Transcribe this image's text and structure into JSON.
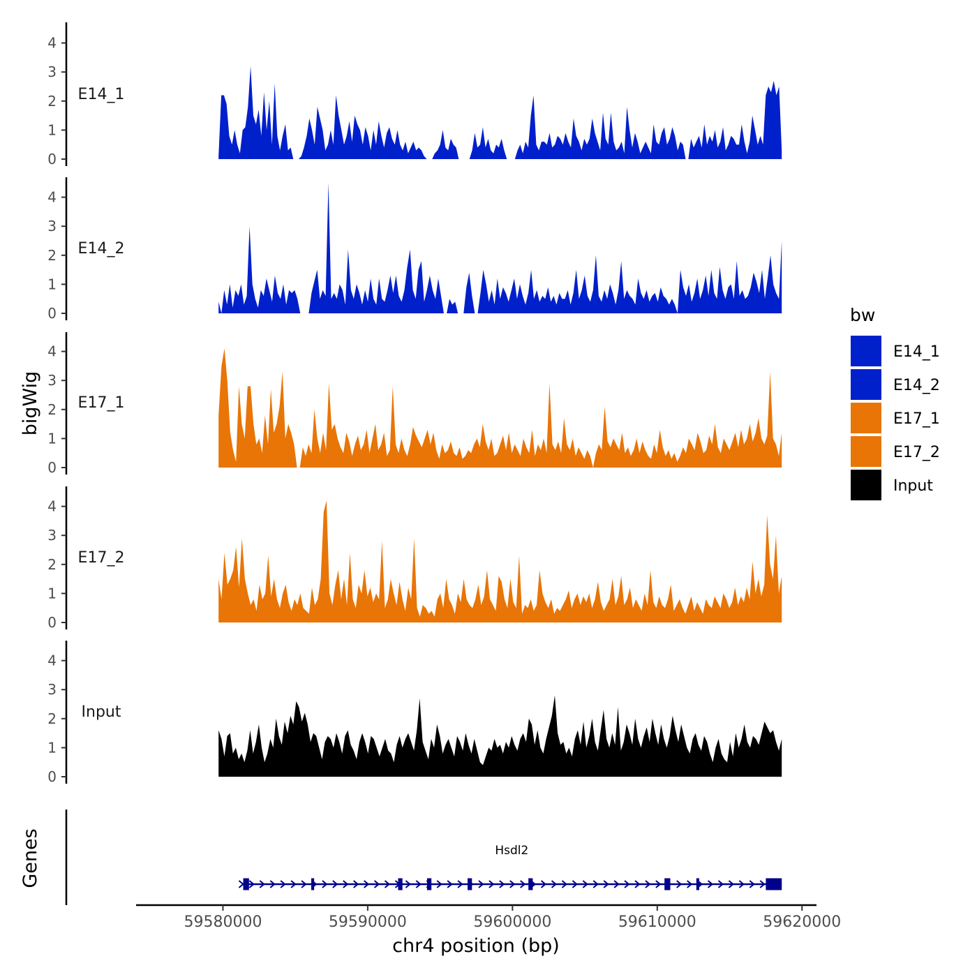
{
  "chart_data": {
    "type": "area",
    "chromosome": "chr4",
    "xlabel": "chr4 position (bp)",
    "ylabel": "bigWig",
    "genes_label": "Genes",
    "xlim": [
      59574000,
      59621000
    ],
    "xticks": [
      59580000,
      59590000,
      59600000,
      59610000,
      59620000
    ],
    "xtick_labels": [
      "59580000",
      "59590000",
      "59600000",
      "59610000",
      "59620000"
    ],
    "ylim": [
      0,
      4.7
    ],
    "yticks": [
      0,
      1,
      2,
      3,
      4
    ],
    "ytick_labels": [
      "0",
      "1",
      "2",
      "3",
      "4"
    ],
    "legend": {
      "title": "bw",
      "entries": [
        {
          "label": "E14_1",
          "color": "#0020cc"
        },
        {
          "label": "E14_2",
          "color": "#0020cc"
        },
        {
          "label": "E17_1",
          "color": "#e87506"
        },
        {
          "label": "E17_2",
          "color": "#e87506"
        },
        {
          "label": "Input",
          "color": "#000000"
        }
      ]
    },
    "track_range": [
      59579700,
      59618600
    ],
    "tracks": [
      {
        "name": "E14_1",
        "color": "#0020cc",
        "values": [
          0.1,
          2.2,
          2.2,
          1.9,
          0.8,
          0.5,
          1.0,
          0.5,
          0.2,
          1.0,
          1.1,
          1.8,
          3.2,
          1.5,
          1.2,
          1.7,
          0.8,
          2.3,
          1.0,
          2.0,
          0.5,
          2.6,
          0.8,
          0.3,
          0.8,
          1.2,
          0.3,
          0.4,
          0,
          0,
          0,
          0.1,
          0.4,
          0.8,
          1.4,
          1.0,
          0.5,
          1.8,
          1.4,
          1.0,
          0.3,
          0.5,
          1.0,
          0.5,
          2.2,
          1.5,
          1.0,
          0.5,
          0.8,
          1.3,
          0.6,
          1.5,
          1.2,
          1.0,
          0.5,
          1.1,
          0.8,
          0.3,
          1.0,
          0.5,
          1.3,
          0.8,
          0.4,
          0.9,
          1.1,
          0.7,
          0.5,
          1.0,
          0.5,
          0.3,
          0.6,
          0.2,
          0.4,
          0.6,
          0.3,
          0.4,
          0.3,
          0.1,
          0,
          0,
          0,
          0.2,
          0.3,
          0.5,
          1.0,
          0.4,
          0.3,
          0.7,
          0.5,
          0.4,
          0,
          0,
          0,
          0,
          0,
          0.3,
          0.9,
          0.4,
          0.5,
          1.1,
          0.4,
          0.7,
          0.3,
          0.2,
          0.5,
          0.4,
          0.7,
          0.3,
          0,
          0,
          0,
          0,
          0.3,
          0.5,
          0.2,
          0.6,
          0.4,
          1.5,
          2.2,
          0.5,
          0.3,
          0.6,
          0.6,
          0.5,
          0.9,
          0.4,
          0.5,
          0.8,
          0.7,
          0.5,
          0.9,
          0.6,
          0.4,
          1.4,
          0.8,
          0.6,
          0.3,
          0.7,
          0.5,
          0.7,
          1.4,
          0.9,
          0.6,
          0.3,
          1.6,
          0.7,
          0.5,
          1.6,
          0.6,
          0.3,
          0.4,
          0.6,
          0.2,
          1.8,
          1.0,
          0.4,
          0.9,
          0.6,
          0.2,
          0.4,
          0.6,
          0.4,
          0.2,
          1.2,
          0.6,
          0.5,
          0.9,
          1.1,
          0.5,
          0.7,
          1.1,
          0.8,
          0.3,
          0.6,
          0.5,
          0,
          0,
          0.7,
          0.4,
          0.6,
          0.8,
          0.4,
          1.2,
          0.5,
          0.8,
          0.6,
          1.0,
          0.4,
          0.6,
          1.1,
          0.3,
          0.5,
          0.8,
          0.7,
          0.5,
          0.5,
          1.2,
          0.6,
          0.2,
          0.6,
          1.5,
          1.0,
          0.5,
          0.8,
          0.5,
          2.2,
          2.5,
          2.3,
          2.7,
          2.2,
          2.5,
          0.3
        ]
      },
      {
        "name": "E14_2",
        "color": "#0020cc",
        "values": [
          0.4,
          0,
          0.8,
          0.3,
          1.0,
          0.2,
          0.8,
          0.6,
          1.0,
          0.3,
          0.6,
          3.0,
          1.0,
          0.5,
          0.2,
          0.8,
          0.6,
          1.2,
          0.8,
          0.4,
          1.3,
          0.7,
          0.5,
          1.0,
          0.3,
          0.8,
          0.7,
          0.8,
          0.5,
          0,
          0,
          0,
          0,
          0.7,
          1.1,
          1.5,
          0.5,
          0.8,
          0.6,
          4.5,
          0.5,
          0.7,
          0.5,
          1.0,
          0.8,
          0.3,
          2.2,
          0.8,
          0.5,
          1.0,
          0.7,
          0.3,
          0.8,
          0.4,
          1.2,
          0.5,
          0.3,
          1.2,
          0.5,
          0.4,
          0.8,
          1.3,
          0.7,
          1.3,
          0.6,
          0.4,
          0.8,
          1.6,
          2.2,
          0.8,
          0.5,
          1.5,
          1.8,
          0.4,
          0.8,
          1.3,
          0.8,
          0.5,
          1.2,
          0.6,
          0,
          0,
          0.5,
          0.3,
          0.4,
          0,
          0,
          0,
          0.9,
          1.4,
          0.6,
          0,
          0,
          0.7,
          1.5,
          1.0,
          0.4,
          0.8,
          0.3,
          1.2,
          0.5,
          0.9,
          0.7,
          0.4,
          0.8,
          1.2,
          0.5,
          1.0,
          0.6,
          0.3,
          0.7,
          1.5,
          0.5,
          0.8,
          0.4,
          0.6,
          0.5,
          0.9,
          0.4,
          0.6,
          0.3,
          0.7,
          0.5,
          0.5,
          0.8,
          0.3,
          0.7,
          1.5,
          0.5,
          0.8,
          1.3,
          0.6,
          0.4,
          0.8,
          2.0,
          0.6,
          0.4,
          0.8,
          0.5,
          1.0,
          0.7,
          0.3,
          0.8,
          1.8,
          0.5,
          0.8,
          0.6,
          0.5,
          0.3,
          1.2,
          0.7,
          0.5,
          0.8,
          0.4,
          0.6,
          0.7,
          0.4,
          0.9,
          0.6,
          0.5,
          0.3,
          0.5,
          0.3,
          0,
          1.5,
          0.9,
          0.6,
          1.0,
          0.4,
          0.7,
          1.2,
          0.5,
          0.8,
          1.3,
          0.6,
          1.5,
          0.7,
          0.5,
          1.6,
          0.8,
          0.5,
          0.9,
          1.0,
          0.5,
          1.8,
          0.6,
          0.8,
          0.5,
          0.6,
          0.9,
          1.4,
          1.1,
          0.7,
          1.5,
          0.5,
          1.2,
          2.0,
          1.0,
          0.7,
          0.5,
          2.5
        ]
      },
      {
        "name": "E17_1",
        "color": "#e87506",
        "values": [
          1.8,
          3.5,
          4.1,
          3.0,
          1.2,
          0.6,
          0.2,
          2.8,
          1.5,
          1.0,
          2.8,
          2.8,
          1.5,
          0.8,
          1.0,
          0.5,
          1.8,
          0.8,
          2.7,
          1.2,
          1.5,
          2.1,
          3.3,
          1.0,
          1.5,
          1.2,
          0.8,
          0,
          0,
          0.7,
          0.4,
          0.8,
          0.5,
          2.0,
          1.0,
          0.5,
          1.2,
          0.6,
          2.9,
          1.3,
          1.5,
          1.0,
          0.7,
          0.5,
          1.2,
          0.9,
          0.4,
          0.8,
          1.1,
          0.6,
          0.8,
          1.3,
          0.5,
          1.0,
          1.5,
          0.6,
          0.8,
          1.2,
          0.4,
          0.6,
          2.8,
          0.8,
          0.5,
          1.0,
          0.6,
          0.4,
          0.8,
          1.4,
          1.1,
          0.9,
          0.7,
          1.0,
          1.3,
          0.8,
          1.2,
          0.6,
          0.3,
          0.8,
          0.5,
          0.6,
          0.9,
          0.5,
          0.4,
          0.7,
          0.3,
          0.4,
          0.6,
          0.5,
          0.8,
          1.0,
          0.7,
          1.5,
          0.9,
          0.6,
          1.0,
          0.4,
          0.5,
          0.8,
          1.1,
          0.6,
          1.2,
          0.5,
          0.8,
          0.6,
          0.4,
          1.0,
          0.7,
          0.5,
          1.3,
          0.4,
          0.8,
          0.6,
          1.0,
          0.5,
          2.9,
          0.8,
          0.6,
          0.9,
          0.5,
          1.7,
          0.8,
          0.6,
          1.0,
          0.4,
          0.7,
          0.5,
          0.3,
          0.6,
          0.4,
          0,
          0.5,
          0.8,
          0.6,
          2.1,
          0.9,
          0.7,
          1.0,
          0.8,
          0.6,
          1.2,
          0.5,
          0.7,
          0.4,
          0.6,
          1.0,
          0.5,
          0.9,
          0.6,
          0.4,
          0.3,
          0.8,
          0.5,
          1.3,
          0.7,
          0.4,
          0.6,
          0.3,
          0.5,
          0.2,
          0.4,
          0.7,
          0.5,
          1.0,
          0.8,
          0.6,
          1.2,
          0.9,
          0.5,
          0.6,
          1.1,
          0.8,
          1.5,
          0.7,
          0.5,
          1.0,
          0.8,
          0.6,
          0.9,
          1.2,
          0.7,
          1.3,
          0.8,
          1.0,
          1.5,
          0.9,
          1.2,
          1.7,
          1.0,
          0.8,
          1.1,
          3.3,
          1.0,
          0.8,
          0.4,
          1.2
        ]
      },
      {
        "name": "E17_2",
        "color": "#e87506",
        "values": [
          1.5,
          0.8,
          2.4,
          1.3,
          1.5,
          1.8,
          2.6,
          1.2,
          2.9,
          1.5,
          1.0,
          0.6,
          0.8,
          0.4,
          1.3,
          0.8,
          1.0,
          2.3,
          0.9,
          1.5,
          0.8,
          0.5,
          1.0,
          1.3,
          0.7,
          0.4,
          0.8,
          0.6,
          1.0,
          0.5,
          0.4,
          0.3,
          1.2,
          0.6,
          0.8,
          1.5,
          3.8,
          4.2,
          1.0,
          0.6,
          1.3,
          1.8,
          0.8,
          1.5,
          0.6,
          2.4,
          0.8,
          0.5,
          1.3,
          1.0,
          1.8,
          0.9,
          1.2,
          0.7,
          1.0,
          0.8,
          2.8,
          0.5,
          0.8,
          1.5,
          1.0,
          0.6,
          1.4,
          0.8,
          0.4,
          1.2,
          0.8,
          2.9,
          0.5,
          0.2,
          0.6,
          0.5,
          0.3,
          0.4,
          0.2,
          0.8,
          1.0,
          0.5,
          1.5,
          0.8,
          0.6,
          0.3,
          1.0,
          0.7,
          1.5,
          0.8,
          0.6,
          0.5,
          0.8,
          1.3,
          0.6,
          0.9,
          1.8,
          0.8,
          0.6,
          0.4,
          1.6,
          1.4,
          0.8,
          0.5,
          1.5,
          0.7,
          0.5,
          2.3,
          0.3,
          0.6,
          0.5,
          0.8,
          0.4,
          0.6,
          1.8,
          1.0,
          0.7,
          0.5,
          0.8,
          0.3,
          0.5,
          0.4,
          0.6,
          0.8,
          1.1,
          0.5,
          0.8,
          1.0,
          0.6,
          0.9,
          0.7,
          1.0,
          0.5,
          0.8,
          1.4,
          0.7,
          0.4,
          0.6,
          0.8,
          1.5,
          0.6,
          0.9,
          1.6,
          0.6,
          0.8,
          1.2,
          0.5,
          0.8,
          0.6,
          0.4,
          1.0,
          0.6,
          1.8,
          0.7,
          0.5,
          0.9,
          0.6,
          0.5,
          0.8,
          1.3,
          0.4,
          0.6,
          0.8,
          0.5,
          0.3,
          0.6,
          0.9,
          0.4,
          0.7,
          0.5,
          0.3,
          0.8,
          0.6,
          0.5,
          0.9,
          0.7,
          0.5,
          1.0,
          0.8,
          0.5,
          0.7,
          1.2,
          0.6,
          0.9,
          0.7,
          1.2,
          0.8,
          2.1,
          1.0,
          1.5,
          0.9,
          1.3,
          3.7,
          2.0,
          1.5,
          3.0,
          1.0,
          1.6
        ]
      },
      {
        "name": "Input",
        "color": "#000000",
        "values": [
          1.6,
          1.3,
          0.7,
          1.4,
          1.5,
          0.8,
          1.0,
          0.6,
          0.8,
          0.5,
          0.9,
          1.6,
          0.8,
          1.2,
          1.8,
          1.0,
          0.5,
          0.8,
          1.3,
          1.0,
          2.0,
          1.4,
          1.1,
          1.9,
          1.5,
          2.1,
          1.8,
          2.6,
          2.4,
          1.9,
          2.2,
          1.8,
          1.2,
          1.5,
          1.4,
          1.0,
          0.6,
          1.2,
          1.4,
          1.3,
          1.0,
          1.5,
          1.2,
          0.8,
          1.4,
          1.6,
          1.1,
          0.9,
          0.6,
          1.2,
          1.5,
          1.2,
          0.8,
          1.4,
          1.3,
          1.0,
          0.7,
          1.0,
          1.3,
          0.9,
          0.8,
          0.5,
          1.1,
          1.4,
          1.0,
          1.3,
          1.5,
          1.2,
          0.9,
          1.6,
          2.7,
          1.2,
          0.9,
          0.6,
          1.3,
          1.0,
          1.8,
          1.4,
          0.8,
          1.1,
          1.3,
          1.0,
          0.7,
          1.4,
          1.2,
          0.9,
          1.5,
          1.1,
          0.8,
          1.3,
          0.9,
          0.5,
          0.4,
          0.7,
          1.0,
          0.9,
          1.3,
          1.0,
          1.1,
          0.8,
          1.2,
          1.0,
          1.4,
          1.1,
          0.9,
          1.3,
          1.5,
          1.2,
          2.0,
          1.8,
          1.1,
          1.6,
          1.0,
          0.8,
          1.3,
          1.7,
          2.1,
          2.8,
          1.5,
          1.1,
          1.2,
          0.8,
          1.0,
          0.7,
          1.3,
          1.6,
          1.1,
          1.9,
          1.0,
          1.4,
          2.0,
          1.2,
          0.9,
          1.6,
          2.3,
          1.3,
          1.0,
          1.5,
          1.1,
          2.4,
          0.9,
          1.2,
          1.8,
          1.5,
          1.1,
          2.0,
          1.3,
          1.0,
          1.4,
          1.7,
          1.2,
          2.0,
          1.5,
          1.1,
          1.8,
          1.3,
          1.0,
          1.4,
          2.1,
          1.6,
          1.2,
          1.8,
          1.4,
          1.0,
          0.8,
          1.3,
          1.5,
          1.1,
          0.9,
          1.4,
          1.2,
          0.8,
          0.5,
          1.0,
          1.3,
          0.8,
          0.6,
          0.5,
          1.2,
          0.7,
          1.5,
          1.0,
          1.3,
          1.8,
          1.2,
          1.0,
          1.4,
          1.3,
          1.1,
          1.5,
          1.9,
          1.7,
          1.5,
          1.6,
          1.2,
          0.9,
          1.3
        ]
      }
    ],
    "gene": {
      "name": "Hsdl2",
      "strand": "+",
      "start": 59581300,
      "end": 59618600,
      "exons": [
        [
          59581400,
          59581800
        ],
        [
          59586100,
          59586300
        ],
        [
          59592100,
          59592400
        ],
        [
          59594100,
          59594400
        ],
        [
          59596900,
          59597200
        ],
        [
          59601100,
          59601400
        ],
        [
          59610500,
          59610900
        ],
        [
          59612700,
          59612900
        ],
        [
          59617500,
          59618600
        ]
      ],
      "color": "#00008b"
    }
  }
}
